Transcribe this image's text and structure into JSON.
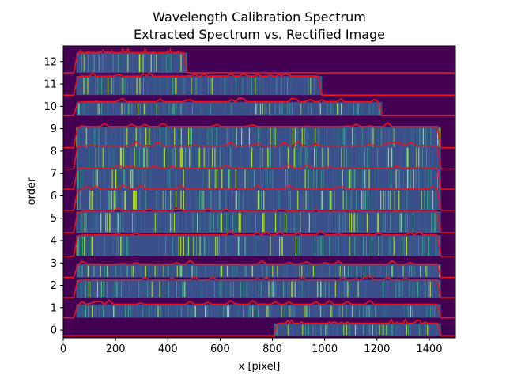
{
  "chart_data": {
    "type": "heatmap",
    "title": "Wavelength Calibration Spectrum",
    "subtitle": "Extracted Spectrum vs. Rectified Image",
    "xlabel": "x [pixel]",
    "ylabel": "order",
    "xlim": [
      0,
      1500
    ],
    "ylim": [
      -0.35,
      12.7
    ],
    "xticks": [
      0,
      200,
      400,
      600,
      800,
      1000,
      1200,
      1400
    ],
    "xtick_labels": [
      "0",
      "200",
      "400",
      "600",
      "800",
      "1000",
      "1200",
      "1400"
    ],
    "yticks": [
      0,
      1,
      2,
      3,
      4,
      5,
      6,
      7,
      8,
      9,
      10,
      11,
      12
    ],
    "ytick_labels": [
      "0",
      "1",
      "2",
      "3",
      "4",
      "5",
      "6",
      "7",
      "8",
      "9",
      "10",
      "11",
      "12"
    ],
    "grid": false,
    "colormap": "viridis",
    "background_color": "#440154",
    "band_color": "#3b4f8a",
    "line_color": "#3ddc84",
    "spectrum_color": "#e8141f",
    "orders": [
      {
        "order": 0,
        "image_x": [
          805,
          1445
        ],
        "extract_x": [
          805,
          1445
        ],
        "baseline": -0.25,
        "top": 0.3
      },
      {
        "order": 1,
        "image_x": [
          50,
          1445
        ],
        "extract_x": [
          40,
          1445
        ],
        "baseline": 0.55,
        "top": 1.15
      },
      {
        "order": 2,
        "image_x": [
          50,
          1445
        ],
        "extract_x": [
          40,
          1445
        ],
        "baseline": 1.45,
        "top": 2.25
      },
      {
        "order": 3,
        "image_x": [
          50,
          1445
        ],
        "extract_x": [
          40,
          1445
        ],
        "baseline": 2.35,
        "top": 2.95
      },
      {
        "order": 4,
        "image_x": [
          50,
          1445
        ],
        "extract_x": [
          40,
          1445
        ],
        "baseline": 3.3,
        "top": 4.25
      },
      {
        "order": 5,
        "image_x": [
          50,
          1445
        ],
        "extract_x": [
          40,
          1445
        ],
        "baseline": 4.35,
        "top": 5.3
      },
      {
        "order": 6,
        "image_x": [
          50,
          1445
        ],
        "extract_x": [
          40,
          1445
        ],
        "baseline": 5.35,
        "top": 6.3
      },
      {
        "order": 7,
        "image_x": [
          50,
          1445
        ],
        "extract_x": [
          40,
          1445
        ],
        "baseline": 6.3,
        "top": 7.25
      },
      {
        "order": 8,
        "image_x": [
          50,
          1445
        ],
        "extract_x": [
          40,
          1445
        ],
        "baseline": 7.2,
        "top": 8.25
      },
      {
        "order": 9,
        "image_x": [
          50,
          1445
        ],
        "extract_x": [
          40,
          1445
        ],
        "baseline": 8.15,
        "top": 9.1
      },
      {
        "order": 10,
        "image_x": [
          50,
          1220
        ],
        "extract_x": [
          40,
          1220
        ],
        "baseline": 9.6,
        "top": 10.2
      },
      {
        "order": 11,
        "image_x": [
          50,
          990
        ],
        "extract_x": [
          40,
          990
        ],
        "baseline": 10.5,
        "top": 11.35
      },
      {
        "order": 12,
        "image_x": [
          50,
          475
        ],
        "extract_x": [
          40,
          475
        ],
        "baseline": 11.5,
        "top": 12.4
      }
    ]
  }
}
